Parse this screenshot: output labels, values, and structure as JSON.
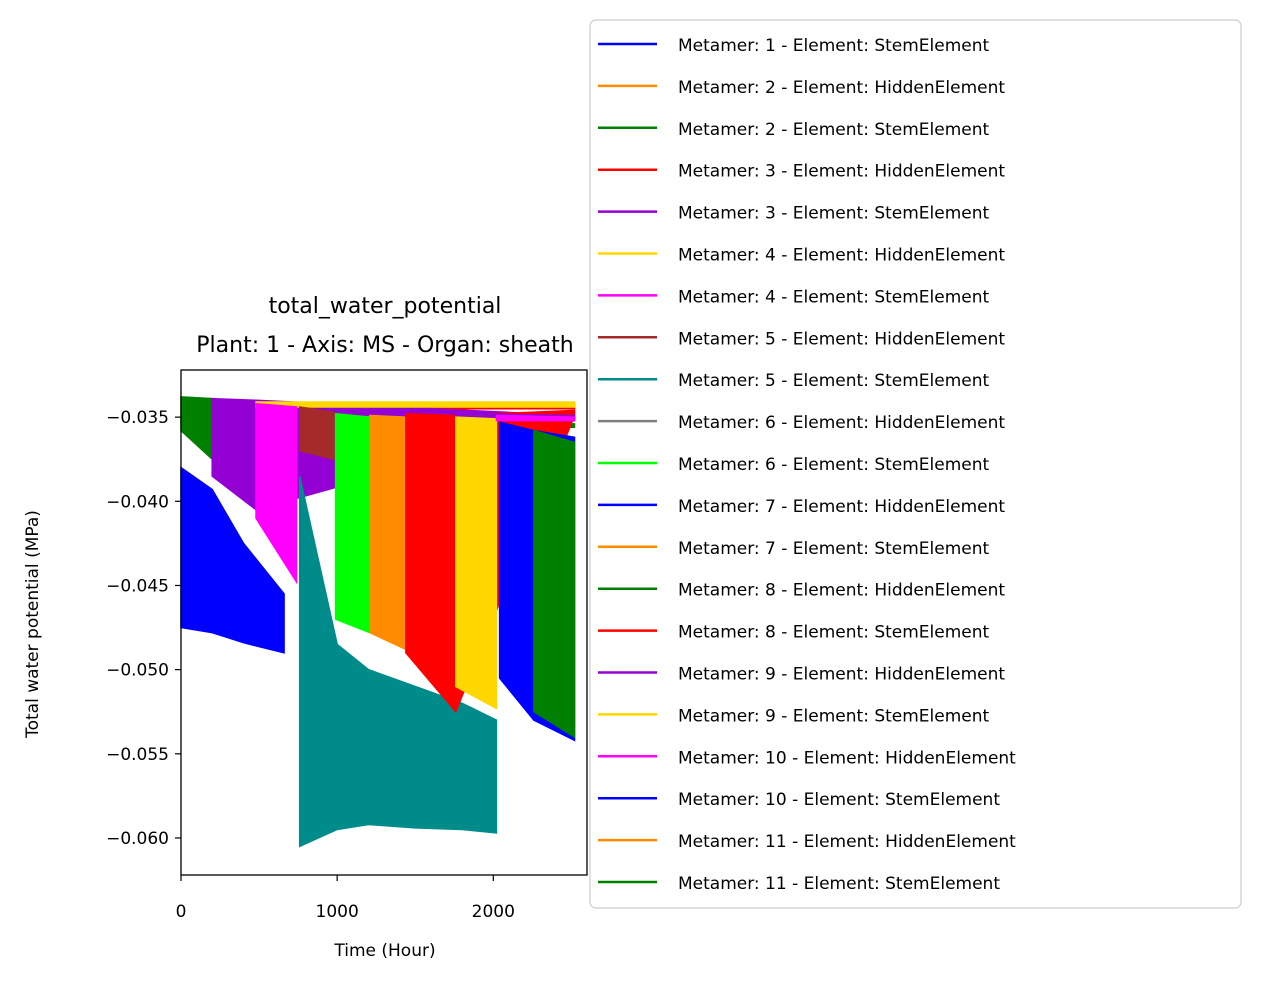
{
  "chart_data": {
    "type": "area",
    "title": "total_water_potential",
    "subtitle": "Plant: 1 - Axis: MS - Organ: sheath",
    "xlabel": "Time (Hour)",
    "ylabel": "Total water potential (MPa)",
    "xlim": [
      0,
      2600
    ],
    "ylim": [
      -0.0622,
      -0.0322
    ],
    "x_ticks": [
      0,
      1000,
      2000
    ],
    "x_tick_labels": [
      "0",
      "1000",
      "2000"
    ],
    "y_ticks": [
      -0.035,
      -0.04,
      -0.045,
      -0.05,
      -0.055,
      -0.06
    ],
    "y_tick_labels": [
      "−0.035",
      "−0.040",
      "−0.045",
      "−0.050",
      "−0.055",
      "−0.060"
    ],
    "grid": false,
    "legend_position": "upper-right, outside plot",
    "series": [
      {
        "name": "Metamer: 1 - Element: StemElement",
        "color": "#0000ff",
        "x": [
          0,
          200,
          400,
          660
        ],
        "upper": [
          -0.038,
          -0.0393,
          -0.0425,
          -0.0455
        ],
        "lower": [
          -0.0475,
          -0.0478,
          -0.0484,
          -0.049
        ]
      },
      {
        "name": "Metamer: 2 - Element: HiddenElement",
        "color": "#ff8c00",
        "x": [],
        "upper": [],
        "lower": []
      },
      {
        "name": "Metamer: 2 - Element: StemElement",
        "color": "#008000",
        "x": [
          0,
          200
        ],
        "upper": [
          -0.0338,
          -0.0339
        ],
        "lower": [
          -0.0358,
          -0.0375
        ]
      },
      {
        "name": "Metamer: 3 - Element: HiddenElement",
        "color": "#ff0000",
        "x": [
          800,
          2520
        ],
        "upper": [
          -0.0342,
          -0.0342
        ],
        "lower": [
          -0.0345,
          -0.0345
        ]
      },
      {
        "name": "Metamer: 3 - Element: StemElement",
        "color": "#9400d3",
        "x": [
          200,
          480,
          2520
        ],
        "upper": [
          -0.0339,
          -0.034,
          -0.0349
        ],
        "lower": [
          -0.0385,
          -0.0405,
          -0.0352
        ]
      },
      {
        "name": "Metamer: 4 - Element: HiddenElement",
        "color": "#ffd700",
        "x": [
          480,
          2520
        ],
        "upper": [
          -0.0341,
          -0.0341
        ],
        "lower": [
          -0.0344,
          -0.0344
        ]
      },
      {
        "name": "Metamer: 4 - Element: StemElement",
        "color": "#ff00ff",
        "x": [
          480,
          740
        ],
        "upper": [
          -0.0342,
          -0.0344
        ],
        "lower": [
          -0.041,
          -0.0448
        ]
      },
      {
        "name": "Metamer: 5 - Element: HiddenElement",
        "color": "#a52a2a",
        "x": [
          760,
          980
        ],
        "upper": [
          -0.0344,
          -0.0347
        ],
        "lower": [
          -0.037,
          -0.0375
        ]
      },
      {
        "name": "Metamer: 5 - Element: StemElement",
        "color": "#008b8b",
        "x": [
          760,
          1000,
          1200,
          1500,
          1800,
          2020
        ],
        "upper": [
          -0.0385,
          -0.0485,
          -0.05,
          -0.051,
          -0.052,
          -0.053
        ],
        "lower": [
          -0.0605,
          -0.0595,
          -0.0592,
          -0.0594,
          -0.0595,
          -0.0597
        ]
      },
      {
        "name": "Metamer: 6 - Element: HiddenElement",
        "color": "#808080",
        "x": [],
        "upper": [],
        "lower": []
      },
      {
        "name": "Metamer: 6 - Element: StemElement",
        "color": "#00ff00",
        "x": [
          990,
          1210
        ],
        "upper": [
          -0.0348,
          -0.035
        ],
        "lower": [
          -0.047,
          -0.0478
        ]
      },
      {
        "name": "Metamer: 7 - Element: HiddenElement",
        "color": "#0000ff",
        "x": [],
        "upper": [],
        "lower": []
      },
      {
        "name": "Metamer: 7 - Element: StemElement",
        "color": "#ff8c00",
        "x": [
          1210,
          1440
        ],
        "upper": [
          -0.0349,
          -0.035
        ],
        "lower": [
          -0.0478,
          -0.0488
        ]
      },
      {
        "name": "Metamer: 8 - Element: HiddenElement",
        "color": "#008000",
        "x": [
          1440,
          2520
        ],
        "upper": [
          -0.0353,
          -0.0354
        ],
        "lower": [
          -0.0356,
          -0.0356
        ]
      },
      {
        "name": "Metamer: 8 - Element: StemElement",
        "color": "#ff0000",
        "x": [
          1440,
          1760,
          2520
        ],
        "upper": [
          -0.0348,
          -0.0349,
          -0.0346
        ],
        "lower": [
          -0.049,
          -0.0525,
          -0.0349
        ]
      },
      {
        "name": "Metamer: 9 - Element: HiddenElement",
        "color": "#9400d3",
        "x": [
          1760,
          2520
        ],
        "upper": [
          -0.0348,
          -0.0349
        ],
        "lower": [
          -0.0352,
          -0.0352
        ]
      },
      {
        "name": "Metamer: 9 - Element: StemElement",
        "color": "#ffd700",
        "x": [
          1760,
          2020
        ],
        "upper": [
          -0.035,
          -0.0351
        ],
        "lower": [
          -0.051,
          -0.0523
        ]
      },
      {
        "name": "Metamer: 10 - Element: HiddenElement",
        "color": "#ff00ff",
        "x": [
          2020,
          2520
        ],
        "upper": [
          -0.0349,
          -0.035
        ],
        "lower": [
          -0.0352,
          -0.0352
        ]
      },
      {
        "name": "Metamer: 10 - Element: StemElement",
        "color": "#0000ff",
        "x": [
          2040,
          2260,
          2520
        ],
        "upper": [
          -0.0353,
          -0.0358,
          -0.0362
        ],
        "lower": [
          -0.0505,
          -0.053,
          -0.0542
        ]
      },
      {
        "name": "Metamer: 11 - Element: HiddenElement",
        "color": "#ff8c00",
        "x": [],
        "upper": [],
        "lower": []
      },
      {
        "name": "Metamer: 11 - Element: StemElement",
        "color": "#008000",
        "x": [
          2260,
          2520
        ],
        "upper": [
          -0.0358,
          -0.0365
        ],
        "lower": [
          -0.0525,
          -0.054
        ]
      }
    ]
  }
}
